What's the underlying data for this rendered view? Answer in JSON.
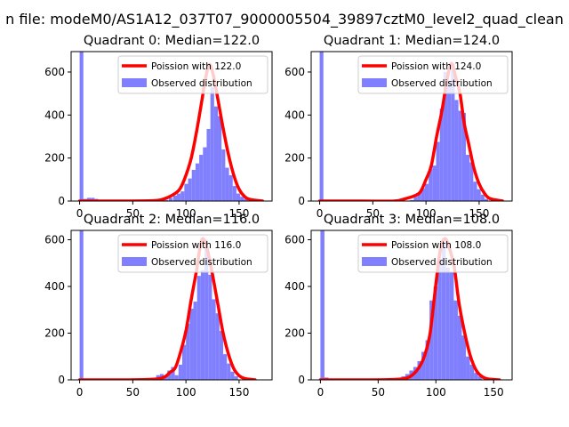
{
  "figure": {
    "suptitle": "n file: modeM0/AS1A12_037T07_9000005504_39897cztM0_level2_quad_clean"
  },
  "colors": {
    "poisson_line": "#ff0000",
    "observed_bars": "#8080ff",
    "axes": "#000000",
    "background": "#ffffff"
  },
  "chart_data": [
    {
      "type": "bar",
      "quadrant": 0,
      "title": "Quadrant 0: Median=122.0",
      "median": 122.0,
      "xlim": [
        -8,
        181
      ],
      "ylim": [
        0,
        695
      ],
      "xticks": [
        0,
        50,
        100,
        150
      ],
      "yticks": [
        0,
        200,
        400,
        600
      ],
      "legend": {
        "placement": "top-right",
        "entries": [
          "Poission with 122.0",
          "Observed distribution"
        ]
      },
      "series": [
        {
          "name": "Poission with 122.0",
          "kind": "line",
          "mean": 122.0,
          "x": [
            0,
            40,
            70,
            80,
            90,
            95,
            100,
            105,
            110,
            115,
            118,
            122,
            126,
            130,
            135,
            140,
            145,
            150,
            155,
            160,
            172
          ],
          "y": [
            0,
            0,
            2,
            11,
            36,
            62,
            120,
            200,
            323,
            468,
            560,
            635,
            580,
            475,
            338,
            216,
            120,
            55,
            22,
            8,
            0
          ]
        },
        {
          "name": "Observed distribution",
          "kind": "bar",
          "bin_width": 3.5,
          "x": [
            0,
            3.5,
            7,
            10.5,
            14,
            80,
            84,
            88,
            91.5,
            95,
            98.5,
            102,
            105.5,
            109,
            112.5,
            116,
            119.5,
            123,
            126.5,
            130,
            133.5,
            137,
            140.5,
            144,
            147.5,
            151,
            154.5
          ],
          "y": [
            700,
            10,
            15,
            15,
            10,
            5,
            15,
            25,
            35,
            45,
            80,
            105,
            145,
            175,
            215,
            250,
            335,
            530,
            440,
            395,
            240,
            155,
            120,
            70,
            35,
            20,
            10
          ]
        }
      ]
    },
    {
      "type": "bar",
      "quadrant": 1,
      "title": "Quadrant 1: Median=124.0",
      "median": 124.0,
      "xlim": [
        -8,
        181
      ],
      "ylim": [
        0,
        695
      ],
      "xticks": [
        0,
        50,
        100,
        150
      ],
      "yticks": [
        0,
        200,
        400,
        600
      ],
      "legend": {
        "placement": "top-right",
        "entries": [
          "Poission with 124.0",
          "Observed distribution"
        ]
      },
      "series": [
        {
          "name": "Poission with 124.0",
          "kind": "line",
          "mean": 124.0,
          "x": [
            0,
            40,
            70,
            80,
            90,
            95,
            100,
            105,
            110,
            115,
            120,
            124,
            128,
            132,
            136,
            140,
            145,
            150,
            155,
            160,
            172
          ],
          "y": [
            0,
            0,
            0,
            10,
            26,
            45,
            100,
            165,
            300,
            420,
            570,
            640,
            575,
            500,
            360,
            270,
            155,
            80,
            36,
            12,
            0
          ]
        },
        {
          "name": "Observed distribution",
          "kind": "bar",
          "bin_width": 3.5,
          "x": [
            0,
            85,
            88.5,
            92,
            95.5,
            99,
            102.5,
            106,
            109.5,
            113,
            116.5,
            120,
            123.5,
            127,
            130.5,
            134,
            137.5,
            141,
            144.5,
            148,
            151.5,
            155
          ],
          "y": [
            700,
            5,
            20,
            40,
            60,
            80,
            150,
            165,
            275,
            430,
            600,
            560,
            640,
            470,
            420,
            410,
            215,
            180,
            90,
            55,
            30,
            10
          ]
        }
      ]
    },
    {
      "type": "bar",
      "quadrant": 2,
      "title": "Quadrant 2: Median=116.0",
      "median": 116.0,
      "xlim": [
        -8,
        181
      ],
      "ylim": [
        0,
        640
      ],
      "xticks": [
        0,
        50,
        100,
        150
      ],
      "yticks": [
        0,
        200,
        400,
        600
      ],
      "legend": {
        "placement": "top-right",
        "entries": [
          "Poission with 116.0",
          "Observed distribution"
        ]
      },
      "series": [
        {
          "name": "Poission with 116.0",
          "kind": "line",
          "mean": 116.0,
          "x": [
            0,
            40,
            70,
            80,
            85,
            90,
            95,
            100,
            105,
            110,
            113,
            116,
            120,
            125,
            130,
            135,
            140,
            145,
            150,
            155,
            165
          ],
          "y": [
            0,
            0,
            3,
            13,
            32,
            52,
            120,
            210,
            345,
            470,
            560,
            605,
            560,
            450,
            325,
            200,
            110,
            48,
            18,
            6,
            0
          ]
        },
        {
          "name": "Observed distribution",
          "kind": "bar",
          "bin_width": 3.5,
          "x": [
            0,
            65,
            72,
            75.5,
            79,
            82.5,
            86,
            89.5,
            93,
            96.5,
            100,
            103.5,
            107,
            110.5,
            114,
            117.5,
            121,
            124.5,
            128,
            131.5,
            135,
            138.5,
            142,
            145.5
          ],
          "y": [
            640,
            5,
            20,
            25,
            15,
            40,
            55,
            20,
            65,
            150,
            240,
            305,
            335,
            445,
            470,
            600,
            450,
            345,
            285,
            210,
            110,
            70,
            35,
            15
          ]
        }
      ]
    },
    {
      "type": "bar",
      "quadrant": 3,
      "title": "Quadrant 3: Median=108.0",
      "median": 108.0,
      "xlim": [
        -8,
        166
      ],
      "ylim": [
        0,
        640
      ],
      "xticks": [
        0,
        50,
        100,
        150
      ],
      "yticks": [
        0,
        200,
        400,
        600
      ],
      "legend": {
        "placement": "top-right",
        "entries": [
          "Poission with 108.0",
          "Observed distribution"
        ]
      },
      "series": [
        {
          "name": "Poission with 108.0",
          "kind": "line",
          "mean": 108.0,
          "x": [
            0,
            40,
            65,
            75,
            80,
            85,
            90,
            95,
            100,
            104,
            108,
            112,
            116,
            120,
            125,
            130,
            135,
            140,
            145,
            155
          ],
          "y": [
            0,
            0,
            2,
            8,
            22,
            50,
            100,
            200,
            410,
            560,
            605,
            560,
            480,
            330,
            200,
            100,
            40,
            14,
            4,
            0
          ]
        },
        {
          "name": "Observed distribution",
          "kind": "bar",
          "bin_width": 3.5,
          "x": [
            0,
            3.5,
            60,
            70,
            73.5,
            77,
            80.5,
            84,
            87.5,
            91,
            94.5,
            98,
            101.5,
            105,
            108.5,
            112,
            115.5,
            119,
            122.5,
            126,
            129.5,
            133,
            136.5
          ],
          "y": [
            640,
            10,
            5,
            15,
            25,
            40,
            55,
            80,
            120,
            170,
            340,
            400,
            510,
            590,
            480,
            460,
            340,
            275,
            190,
            100,
            65,
            30,
            15
          ]
        }
      ]
    }
  ]
}
